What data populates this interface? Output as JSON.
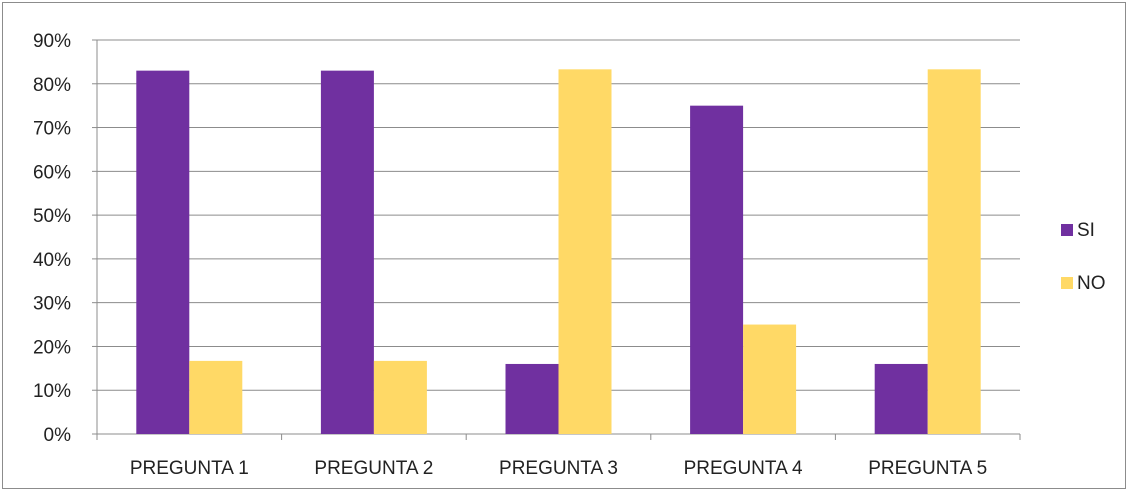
{
  "chart_data": {
    "type": "bar",
    "categories": [
      "PREGUNTA 1",
      "PREGUNTA 2",
      "PREGUNTA 3",
      "PREGUNTA 4",
      "PREGUNTA 5"
    ],
    "series": [
      {
        "name": "SI",
        "color": "#7030A0",
        "values": [
          83,
          83,
          16,
          75,
          16
        ]
      },
      {
        "name": "NO",
        "color": "#FFD966",
        "values": [
          16.7,
          16.7,
          83.3,
          25,
          83.3
        ]
      }
    ],
    "ylim": [
      0,
      90
    ],
    "yticks": [
      0,
      10,
      20,
      30,
      40,
      50,
      60,
      70,
      80,
      90
    ],
    "ytick_labels": [
      "0%",
      "10%",
      "20%",
      "30%",
      "40%",
      "50%",
      "60%",
      "70%",
      "80%",
      "90%"
    ],
    "title": "",
    "xlabel": "",
    "ylabel": "",
    "grid": true,
    "legend_position": "right"
  }
}
